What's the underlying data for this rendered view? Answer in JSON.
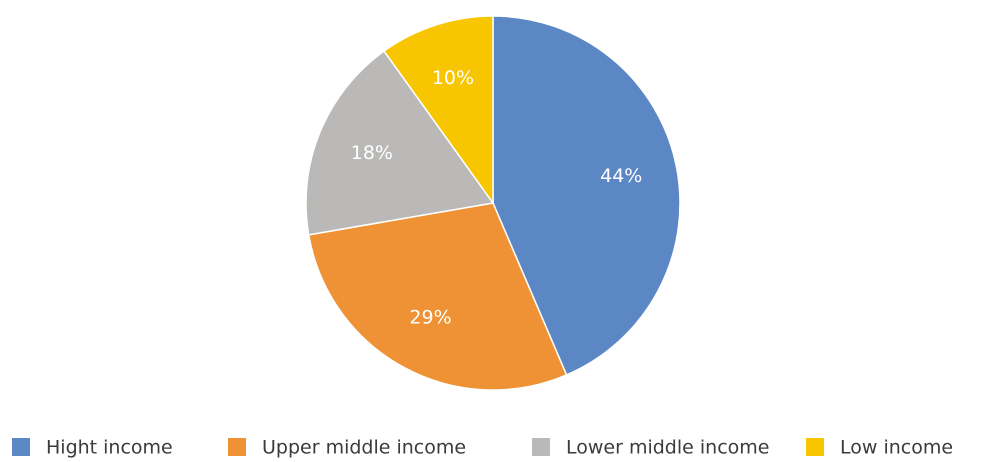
{
  "chart_data": {
    "type": "pie",
    "categories": [
      "Hight income",
      "Upper middle income",
      "Lower middle income",
      "Low income"
    ],
    "values": [
      44,
      29,
      18,
      10
    ],
    "value_labels": [
      "44%",
      "29%",
      "18%",
      "10%"
    ],
    "colors": [
      "#5b87c5",
      "#ee9235",
      "#bab9b7",
      "#f8c600"
    ],
    "legend": "bottom"
  }
}
